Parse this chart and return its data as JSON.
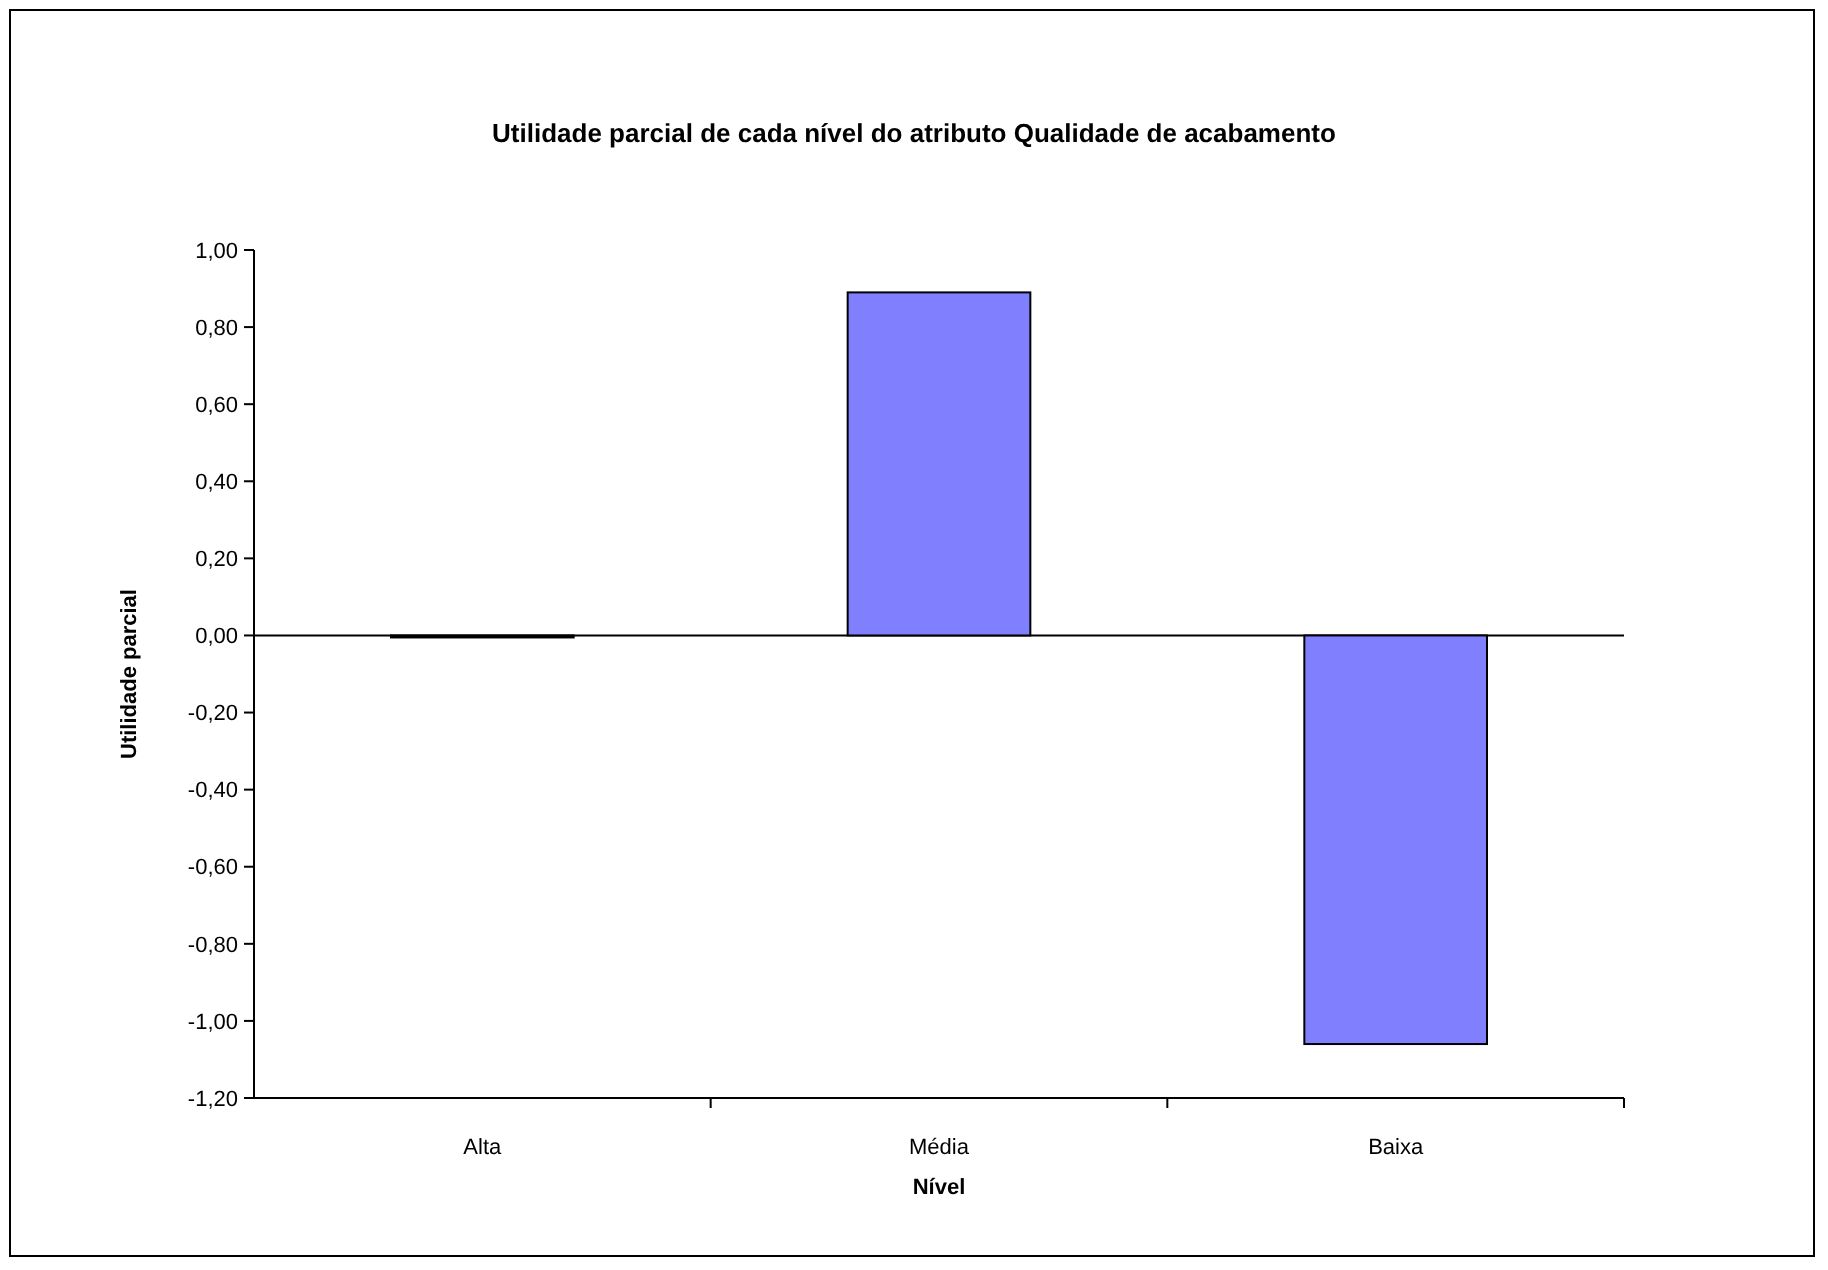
{
  "chart_data": {
    "type": "bar",
    "title": "Utilidade parcial de cada nível do atributo Qualidade de acabamento",
    "xlabel": "Nível",
    "ylabel": "Utilidade parcial",
    "categories": [
      "Alta",
      "Média",
      "Baixa"
    ],
    "values": [
      0.0,
      0.89,
      -1.06
    ],
    "ylim": [
      -1.2,
      1.0
    ],
    "yticks": [
      {
        "value": 1.0,
        "label": "1,00"
      },
      {
        "value": 0.8,
        "label": "0,80"
      },
      {
        "value": 0.6,
        "label": "0,60"
      },
      {
        "value": 0.4,
        "label": "0,40"
      },
      {
        "value": 0.2,
        "label": "0,20"
      },
      {
        "value": 0.0,
        "label": "0,00"
      },
      {
        "value": -0.2,
        "label": "-0,20"
      },
      {
        "value": -0.4,
        "label": "-0,40"
      },
      {
        "value": -0.6,
        "label": "-0,60"
      },
      {
        "value": -0.8,
        "label": "-0,80"
      },
      {
        "value": -1.0,
        "label": "-1,00"
      },
      {
        "value": -1.2,
        "label": "-1,20"
      }
    ],
    "color": "#8080ff"
  }
}
